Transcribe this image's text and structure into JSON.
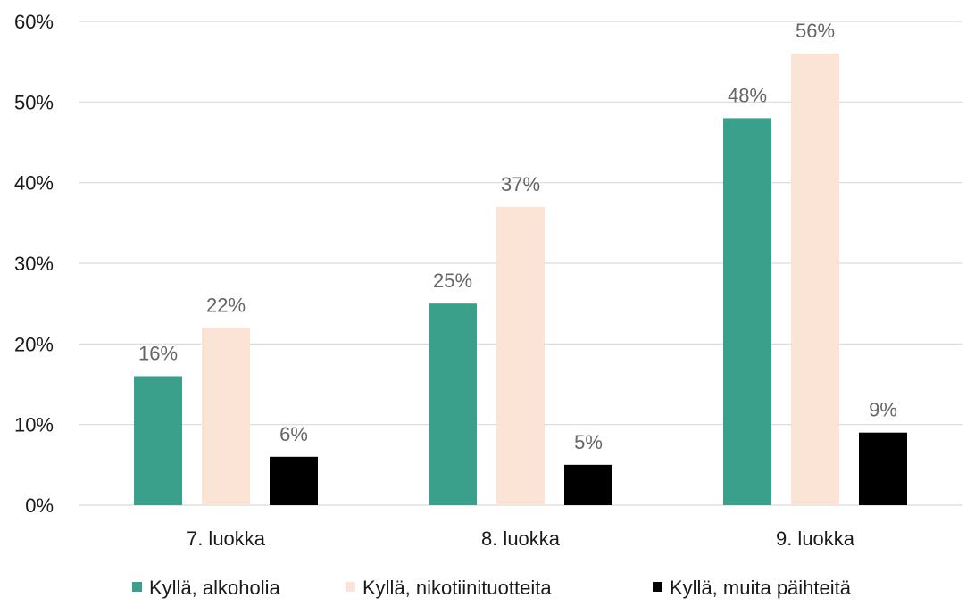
{
  "chart_data": {
    "type": "bar",
    "categories": [
      "7. luokka",
      "8. luokka",
      "9. luokka"
    ],
    "series": [
      {
        "name": "Kyllä, alkoholia",
        "values": [
          16,
          25,
          48
        ],
        "labels": [
          "16%",
          "25%",
          "48%"
        ],
        "color": "#3a9f8b"
      },
      {
        "name": "Kyllä, nikotiinituotteita",
        "values": [
          22,
          37,
          56
        ],
        "labels": [
          "22%",
          "37%",
          "56%"
        ],
        "color": "#fbe3d6"
      },
      {
        "name": "Kyllä, muita päihteitä",
        "values": [
          6,
          5,
          9
        ],
        "labels": [
          "6%",
          "5%",
          "9%"
        ],
        "color": "#000000"
      }
    ],
    "yticks": [
      "0%",
      "10%",
      "20%",
      "30%",
      "40%",
      "50%",
      "60%"
    ],
    "ylim": [
      0,
      60
    ],
    "grid": true,
    "legend_position": "bottom",
    "title": "",
    "xlabel": "",
    "ylabel": ""
  }
}
